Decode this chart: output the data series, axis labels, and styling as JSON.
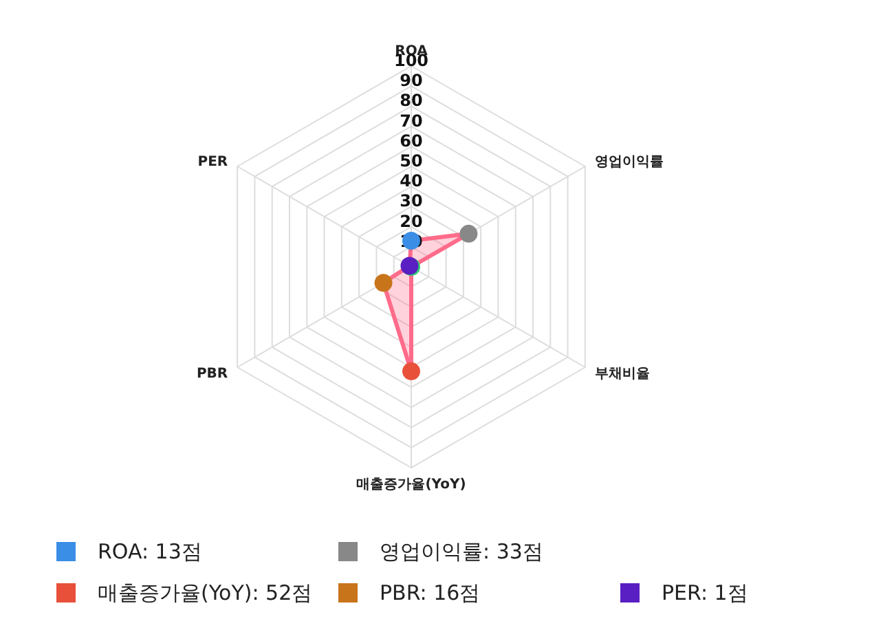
{
  "chart_data": {
    "type": "radar",
    "categories": [
      "ROA",
      "영업이익률",
      "부채비율",
      "매출증가율(YoY)",
      "PBR",
      "PER"
    ],
    "series": [
      {
        "color": "#ff6b8a",
        "values": [
          13,
          33,
          0,
          52,
          16,
          1
        ]
      }
    ],
    "colors": [
      "#3a8ee6",
      "#888888",
      "#2ecc71",
      "#e8503a",
      "#c8741a",
      "#5a1fc2"
    ],
    "value_labels": [
      "ROA: 13점",
      "영업이익률: 33점",
      null,
      "매출증가율(YoY): 52점",
      "PBR: 16점",
      "PER: 1점"
    ],
    "ylim": [
      0,
      100
    ],
    "yticks": [
      10,
      20,
      30,
      40,
      50,
      60,
      70,
      80,
      90,
      100
    ],
    "grid": true,
    "marker": "circle"
  }
}
